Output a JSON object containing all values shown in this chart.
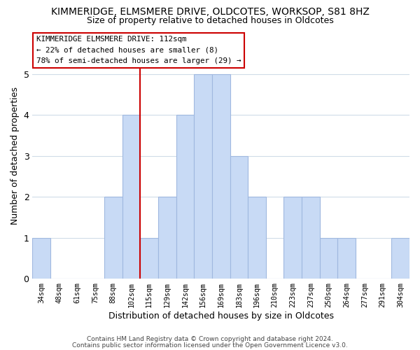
{
  "title_line1": "KIMMERIDGE, ELMSMERE DRIVE, OLDCOTES, WORKSOP, S81 8HZ",
  "title_line2": "Size of property relative to detached houses in Oldcotes",
  "xlabel": "Distribution of detached houses by size in Oldcotes",
  "ylabel": "Number of detached properties",
  "bin_labels": [
    "34sqm",
    "48sqm",
    "61sqm",
    "75sqm",
    "88sqm",
    "102sqm",
    "115sqm",
    "129sqm",
    "142sqm",
    "156sqm",
    "169sqm",
    "183sqm",
    "196sqm",
    "210sqm",
    "223sqm",
    "237sqm",
    "250sqm",
    "264sqm",
    "277sqm",
    "291sqm",
    "304sqm"
  ],
  "bar_heights": [
    1,
    0,
    0,
    0,
    2,
    4,
    1,
    2,
    4,
    5,
    5,
    3,
    2,
    0,
    2,
    2,
    1,
    1,
    0,
    0,
    1
  ],
  "bar_color": "#c8daf5",
  "bar_edge_color": "#a0b8e0",
  "red_line_between": 5,
  "annotation_title": "KIMMERIDGE ELMSMERE DRIVE: 112sqm",
  "annotation_line2": "← 22% of detached houses are smaller (8)",
  "annotation_line3": "78% of semi-detached houses are larger (29) →",
  "annotation_box_color": "#ffffff",
  "annotation_box_edge": "#cc0000",
  "ylim": [
    0,
    6
  ],
  "yticks": [
    0,
    1,
    2,
    3,
    4,
    5,
    6
  ],
  "footer_line1": "Contains HM Land Registry data © Crown copyright and database right 2024.",
  "footer_line2": "Contains public sector information licensed under the Open Government Licence v3.0.",
  "background_color": "#ffffff",
  "grid_color": "#d0dce8"
}
